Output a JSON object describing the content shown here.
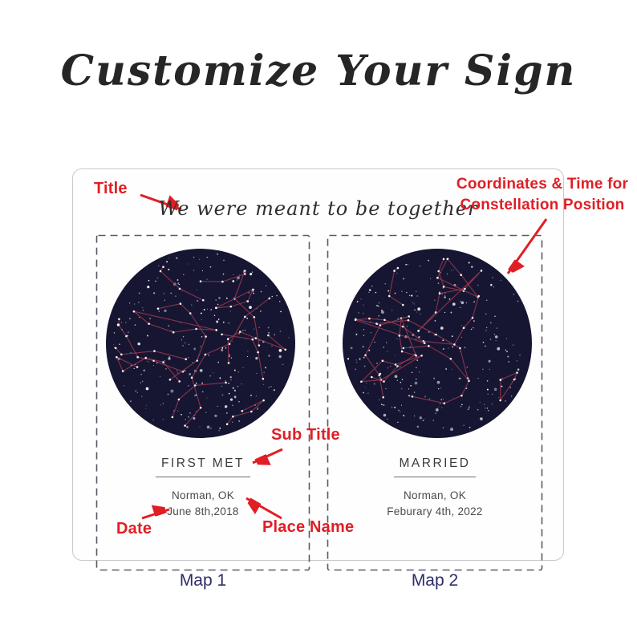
{
  "page": {
    "heading": "Customize Your Sign"
  },
  "sign": {
    "title": "We were meant to be together",
    "maps": [
      {
        "label": "Map 1",
        "subtitle": "FIRST MET",
        "place": "Norman, OK",
        "date": "June 8th,2018"
      },
      {
        "label": "Map 2",
        "subtitle": "MARRIED",
        "place": "Norman, OK",
        "date": "Feburary 4th, 2022"
      }
    ]
  },
  "annotations": {
    "title": "Title",
    "coordinates_line1": "Coordinates & Time for",
    "coordinates_line2": "Constellation Position",
    "sub_title": "Sub Title",
    "date": "Date",
    "place_name": "Place Name"
  },
  "colors": {
    "annotation_red": "#e01e25",
    "map_label": "#2b2b68",
    "star_map_background": "#161633",
    "constellation_line": "#9b3a4e",
    "star": "#ffffff",
    "dashed_border": "#5a5a66"
  }
}
